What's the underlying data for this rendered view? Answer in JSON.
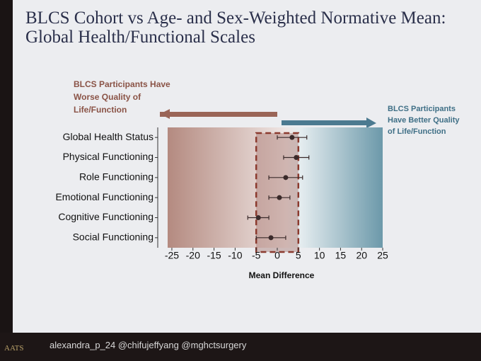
{
  "chart_data": {
    "type": "forest",
    "title": "BLCS Cohort vs Age- and Sex-Weighted Normative Mean: Global Health/Functional Scales",
    "annotations": [
      "BLCS Participants Have Worse Quality of Life/Function",
      "BLCS Participants Have Better Quality of Life/Function"
    ],
    "x_label": "Mean Difference",
    "categories": [
      "Global Health Status",
      "Physical Functioning",
      "Role Functioning",
      "Emotional Functioning",
      "Cognitive Functioning",
      "Social Functioning"
    ],
    "values": [
      3.5,
      4.5,
      2,
      0.5,
      -4.5,
      -1.5
    ],
    "errors": [
      3.5,
      3,
      4,
      2.5,
      2.5,
      3.5
    ],
    "color": "#3a2a2a",
    "reference_band": [
      -5,
      5
    ],
    "xlim": [
      -26,
      26
    ],
    "xticks": [
      -25,
      -20,
      -15,
      -10,
      -5,
      0,
      5,
      10,
      15,
      20,
      25
    ]
  },
  "footer": "alexandra_p_24 @chifujeffyang @mghctsurgery",
  "logo": "AATS"
}
